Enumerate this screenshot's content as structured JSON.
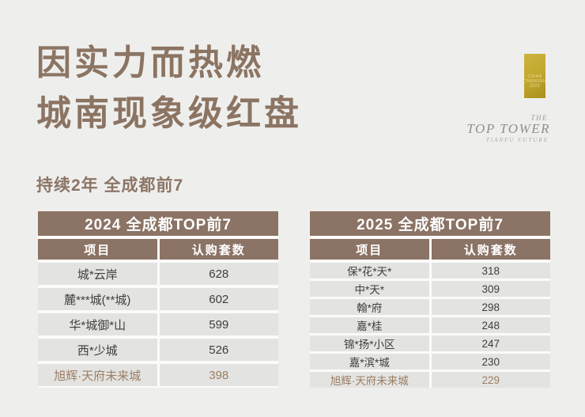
{
  "header": {
    "title_line1": "因实力而热燃",
    "title_line2": "城南现象级红盘",
    "badge": {
      "line1": "CHINA",
      "line2": "CHENGDU",
      "line3": "2025"
    },
    "logo": {
      "the": "THE",
      "name": "TOP TOWER",
      "tagline": "TIANFU FUTURE"
    }
  },
  "subtitle": "持续2年 全成都前7",
  "colors": {
    "page_background": "#eeefed",
    "table_header_brown": "#8b7365",
    "row_background": "#e3e4e1",
    "grid_gap_white": "#fbfbf9",
    "body_text": "#3e3e3c",
    "highlight_text": "#9c7d63",
    "hero_title": "#8c7463",
    "badge_gold": "#c0a62d"
  },
  "chart_data": [
    {
      "type": "table",
      "title": "2024 全成都TOP前7",
      "columns": [
        "项目",
        "认购套数"
      ],
      "rows": [
        {
          "project": "城*云岸",
          "count": "628",
          "highlight": false
        },
        {
          "project": "麓***城(**城)",
          "count": "602",
          "highlight": false
        },
        {
          "project": "华*城御*山",
          "count": "599",
          "highlight": false
        },
        {
          "project": "西*少城",
          "count": "526",
          "highlight": false
        },
        {
          "project": "旭辉·天府未来城",
          "count": "398",
          "highlight": true
        }
      ]
    },
    {
      "type": "table",
      "title": "2025 全成都TOP前7",
      "columns": [
        "项目",
        "认购套数"
      ],
      "rows": [
        {
          "project": "保*花*天*",
          "count": "318",
          "highlight": false
        },
        {
          "project": "中*天*",
          "count": "309",
          "highlight": false
        },
        {
          "project": "翰*府",
          "count": "298",
          "highlight": false
        },
        {
          "project": "嘉*桂",
          "count": "248",
          "highlight": false
        },
        {
          "project": "锦*扬*小区",
          "count": "247",
          "highlight": false
        },
        {
          "project": "嘉*滨*城",
          "count": "230",
          "highlight": false
        },
        {
          "project": "旭辉·天府未来城",
          "count": "229",
          "highlight": true
        }
      ]
    }
  ]
}
